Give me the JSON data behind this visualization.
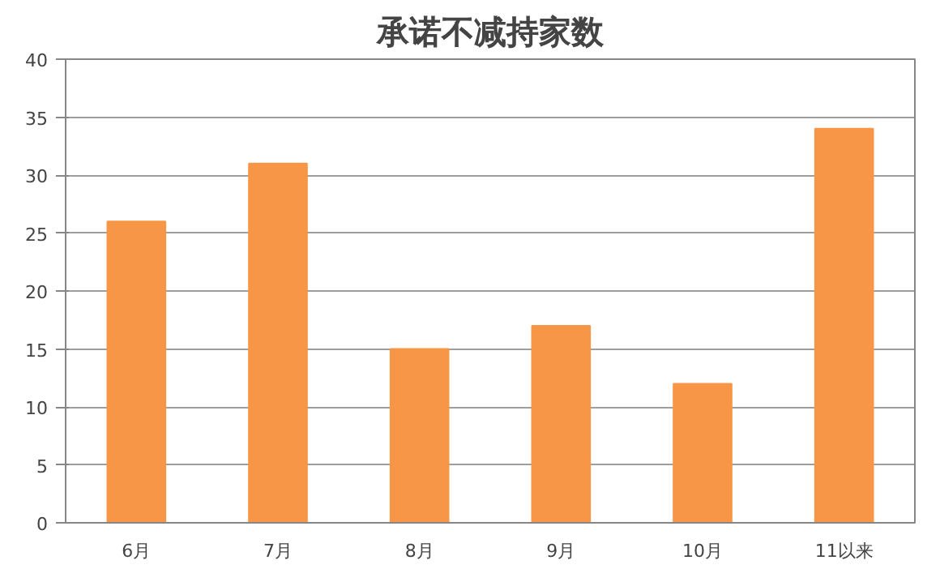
{
  "chart_data": {
    "type": "bar",
    "title": "承诺不减持家数",
    "categories": [
      "6月",
      "7月",
      "8月",
      "9月",
      "10月",
      "11以来"
    ],
    "values": [
      26,
      31,
      15,
      17,
      12,
      34
    ],
    "color": "#f79646",
    "ylim": [
      0,
      40
    ],
    "yticks": [
      0,
      5,
      10,
      15,
      20,
      25,
      30,
      35,
      40
    ],
    "grid": "y"
  }
}
